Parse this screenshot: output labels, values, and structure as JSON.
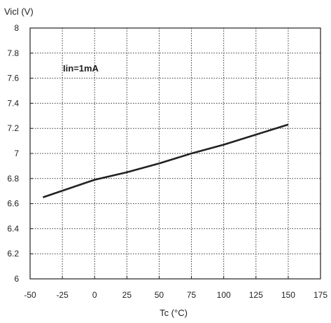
{
  "chart_data": {
    "type": "line",
    "ylabel": "Vicl (V)",
    "xlabel": "Tc (°C)",
    "annotation": "Iin=1mA",
    "xlim": [
      -50,
      175
    ],
    "ylim": [
      6,
      8
    ],
    "xticks": [
      -50,
      -25,
      0,
      25,
      50,
      75,
      100,
      125,
      150,
      175
    ],
    "yticks": [
      6,
      6.2,
      6.4,
      6.6,
      6.8,
      7,
      7.2,
      7.4,
      7.6,
      7.8,
      8
    ],
    "xtick_labels": [
      "-50",
      "-25",
      "0",
      "25",
      "50",
      "75",
      "100",
      "125",
      "150",
      "175"
    ],
    "ytick_labels": [
      "6",
      "6.2",
      "6.4",
      "6.6",
      "6.8",
      "7",
      "7.2",
      "7.4",
      "7.6",
      "7.8",
      "8"
    ],
    "grid": true,
    "grid_style": "dotted",
    "series": [
      {
        "color": "#222222",
        "x": [
          -40,
          0,
          25,
          50,
          75,
          100,
          125,
          150
        ],
        "y": [
          6.65,
          6.79,
          6.85,
          6.92,
          7.0,
          7.07,
          7.15,
          7.23
        ]
      }
    ]
  }
}
